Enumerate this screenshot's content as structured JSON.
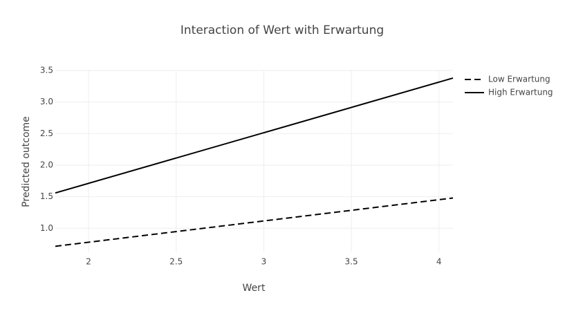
{
  "chart_data": {
    "type": "line",
    "title": "Interaction of Wert with Erwartung",
    "x_label": "Wert",
    "y_label": "Predicted outcome",
    "x": [
      1.81,
      4.08
    ],
    "series": [
      {
        "name": "Low Erwartung",
        "color": "#000000",
        "dash": "dash",
        "values": [
          0.715,
          1.48
        ]
      },
      {
        "name": "High Erwartung",
        "color": "#000000",
        "dash": "solid",
        "values": [
          1.56,
          3.38
        ]
      }
    ],
    "xlim": [
      1.81,
      4.08
    ],
    "ylim": [
      0.62,
      3.5
    ],
    "xticks": [
      2,
      2.5,
      3,
      3.5,
      4
    ],
    "yticks": [
      {
        "value": 1,
        "label": "1.0"
      },
      1.5,
      {
        "value": 2,
        "label": "2.0"
      },
      2.5,
      {
        "value": 3,
        "label": "3.0"
      },
      3.5
    ],
    "grid": true,
    "legend": "right"
  }
}
